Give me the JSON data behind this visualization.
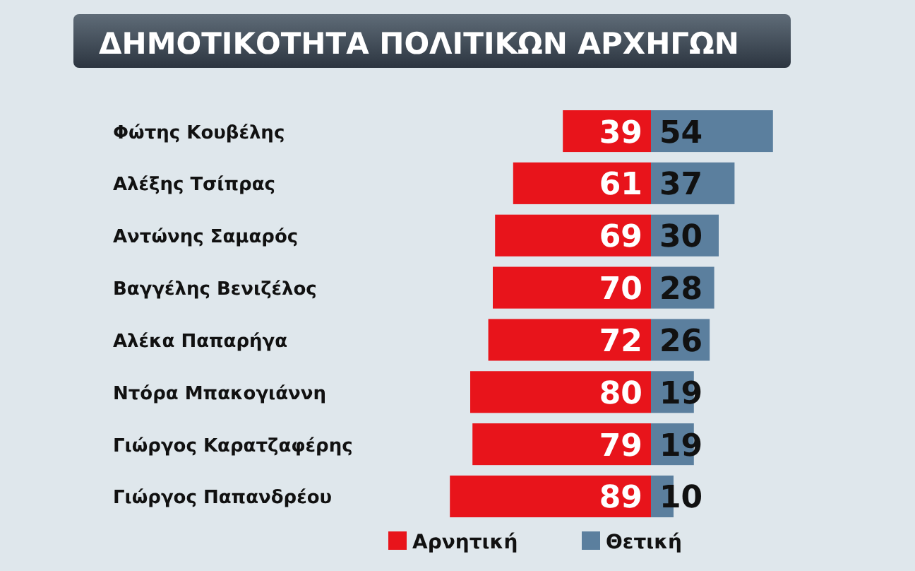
{
  "chart_data": [
    {
      "type": "bar",
      "orientation": "horizontal",
      "title": "ΔΗΜΟΤΙΚΟΤΗΤΑ ΠΟΛΙΤΙΚΩΝ ΑΡΧΗΓΩΝ",
      "categories": [
        "Φώτης Κουβέλης",
        "Αλέξης Τσίπρας",
        "Αντώνης Σαμαρός",
        "Βαγγέλης Βενιζέλος",
        "Αλέκα Παπαρήγα",
        "Ντόρα Μπακογιάννη",
        "Γιώργος Καρατζαφέρης",
        "Γιώργος Παπανδρέου"
      ],
      "series": [
        {
          "name": "Αρνητική",
          "color": "#e8141b",
          "values": [
            39,
            61,
            69,
            70,
            72,
            80,
            79,
            89
          ]
        }
      ],
      "xlim": [
        89,
        0
      ],
      "tick_labels": "y",
      "data_labels": true,
      "legend": "bottom"
    },
    {
      "type": "bar",
      "orientation": "horizontal",
      "categories": [
        null,
        null,
        null,
        null,
        null,
        null,
        null,
        null
      ],
      "series": [
        {
          "name": "Θετική",
          "color": "#5b7f9e",
          "values": [
            54,
            37,
            30,
            28,
            26,
            19,
            19,
            10
          ]
        }
      ],
      "xlim": [
        0,
        54
      ],
      "tick_labels": false,
      "data_labels": true,
      "legend": "bottom"
    }
  ]
}
